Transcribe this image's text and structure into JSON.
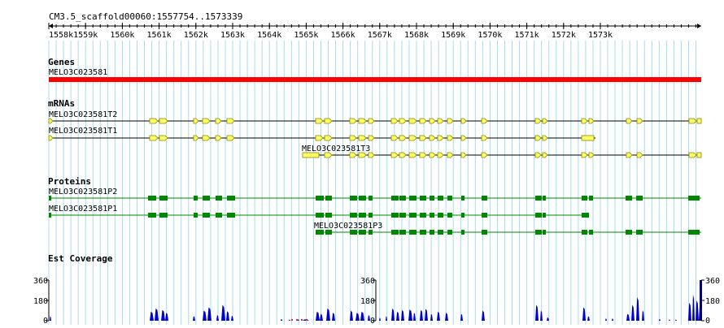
{
  "region": {
    "label": "CM3.5_scaffold00060:1557754..1573339"
  },
  "ruler": {
    "ticks": [
      "1558k",
      "1559k",
      "1560k",
      "1561k",
      "1562k",
      "1563k",
      "1564k",
      "1565k",
      "1566k",
      "1567k",
      "1568k",
      "1569k",
      "1570k",
      "1571k",
      "1572k",
      "1573k"
    ]
  },
  "tracks": {
    "genes": {
      "title": "Genes",
      "features": [
        {
          "name": "MELO3C023581",
          "color": "#ff0000"
        }
      ]
    },
    "mrnas": {
      "title": "mRNAs",
      "features": [
        {
          "name": "MELO3C023581T2"
        },
        {
          "name": "MELO3C023581T1"
        },
        {
          "name": "MELO3C023581T3"
        }
      ]
    },
    "proteins": {
      "title": "Proteins",
      "features": [
        {
          "name": "MELO3C023581P2"
        },
        {
          "name": "MELO3C023581P1"
        },
        {
          "name": "MELO3C023581P3"
        }
      ]
    },
    "coverage": {
      "title": "Est Coverage",
      "scale_max": "360",
      "scale_mid": "180",
      "scale_min": "0"
    }
  },
  "colors": {
    "exon_fill": "#ffff66",
    "exon_stroke": "#888800",
    "protein": "#008800",
    "coverage": "#0000cc",
    "grid": "#a8dcec",
    "gene": "#ff0000"
  }
}
